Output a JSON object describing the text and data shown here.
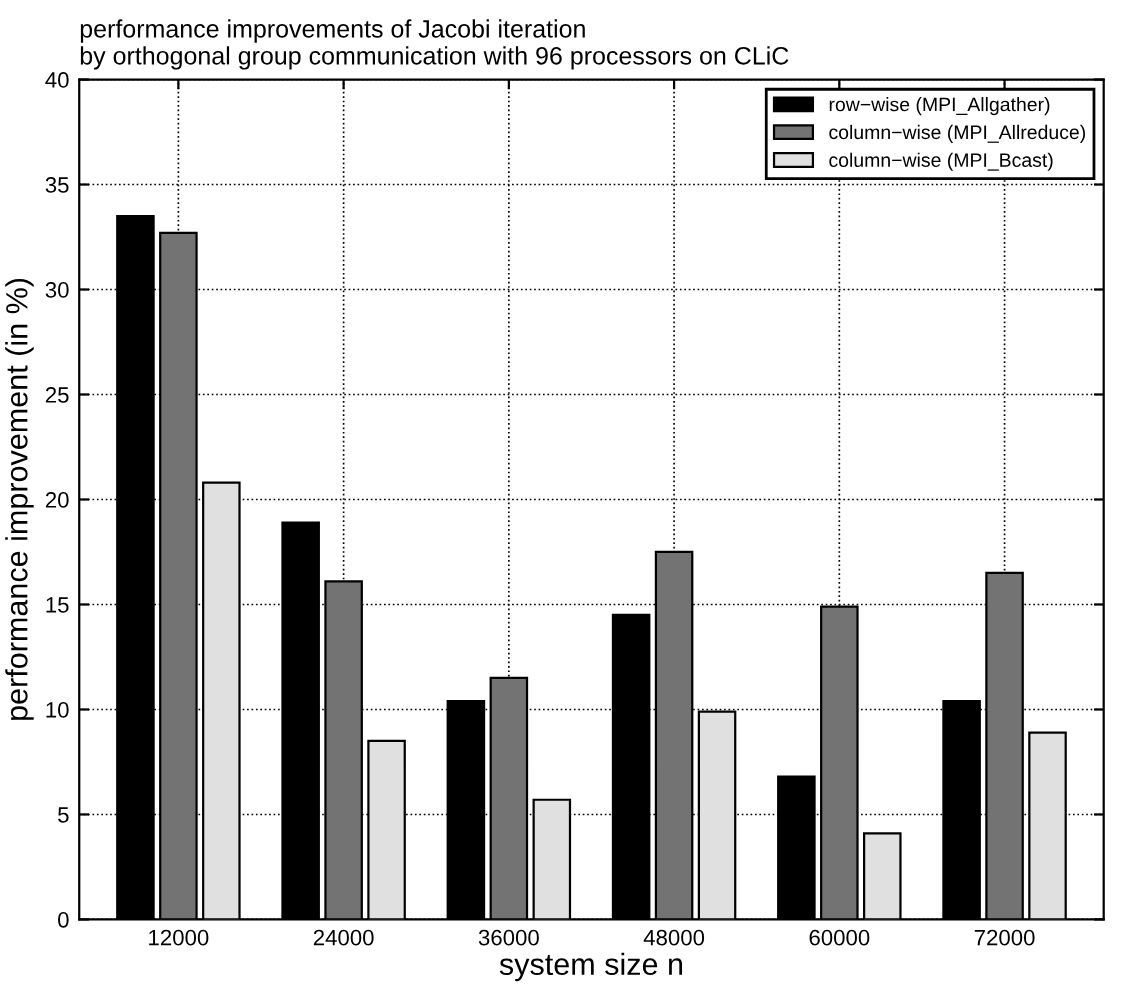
{
  "chart_data": {
    "type": "bar",
    "title": "performance improvements of Jacobi iteration\nby orthogonal group communication with 96 processors on CLiC",
    "xlabel": "system size n",
    "ylabel": "performance improvement (in %)",
    "categories": [
      "12000",
      "24000",
      "36000",
      "48000",
      "60000",
      "72000"
    ],
    "series": [
      {
        "name": "row−wise (MPI_Allgather)",
        "color": "#000000",
        "values": [
          33.5,
          18.9,
          10.4,
          14.5,
          6.8,
          10.4
        ]
      },
      {
        "name": "column−wise (MPI_Allreduce)",
        "color": "#737373",
        "values": [
          32.7,
          16.1,
          11.5,
          17.5,
          14.9,
          16.5
        ]
      },
      {
        "name": "column−wise (MPI_Bcast)",
        "color": "#e0e0e0",
        "values": [
          20.8,
          8.5,
          5.7,
          9.9,
          4.1,
          8.9
        ]
      }
    ],
    "ylim": [
      0,
      40
    ],
    "yticks": [
      0,
      5,
      10,
      15,
      20,
      25,
      30,
      35,
      40
    ],
    "grid": true,
    "legend": "top right"
  }
}
